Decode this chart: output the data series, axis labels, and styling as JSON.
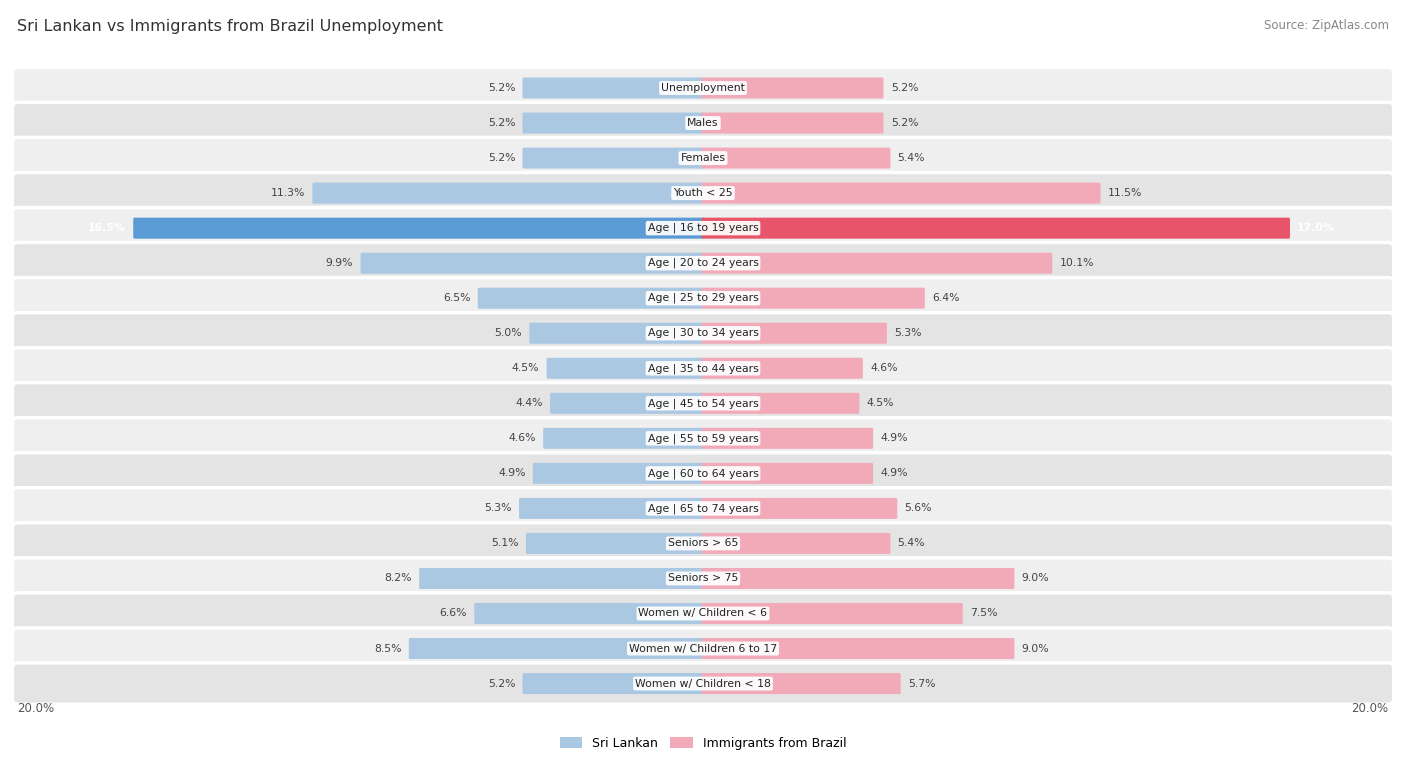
{
  "title": "Sri Lankan vs Immigrants from Brazil Unemployment",
  "source": "Source: ZipAtlas.com",
  "categories": [
    "Unemployment",
    "Males",
    "Females",
    "Youth < 25",
    "Age | 16 to 19 years",
    "Age | 20 to 24 years",
    "Age | 25 to 29 years",
    "Age | 30 to 34 years",
    "Age | 35 to 44 years",
    "Age | 45 to 54 years",
    "Age | 55 to 59 years",
    "Age | 60 to 64 years",
    "Age | 65 to 74 years",
    "Seniors > 65",
    "Seniors > 75",
    "Women w/ Children < 6",
    "Women w/ Children 6 to 17",
    "Women w/ Children < 18"
  ],
  "sri_lankan": [
    5.2,
    5.2,
    5.2,
    11.3,
    16.5,
    9.9,
    6.5,
    5.0,
    4.5,
    4.4,
    4.6,
    4.9,
    5.3,
    5.1,
    8.2,
    6.6,
    8.5,
    5.2
  ],
  "brazil": [
    5.2,
    5.2,
    5.4,
    11.5,
    17.0,
    10.1,
    6.4,
    5.3,
    4.6,
    4.5,
    4.9,
    4.9,
    5.6,
    5.4,
    9.0,
    7.5,
    9.0,
    5.7
  ],
  "x_max": 20.0,
  "blue_normal": "#abc8e2",
  "pink_normal": "#f2aab8",
  "blue_highlight": "#5b9bd5",
  "pink_highlight": "#e8546a",
  "row_bg_even": "#efefef",
  "row_bg_odd": "#e4e4e4",
  "legend_blue": "Sri Lankan",
  "legend_pink": "Immigrants from Brazil"
}
